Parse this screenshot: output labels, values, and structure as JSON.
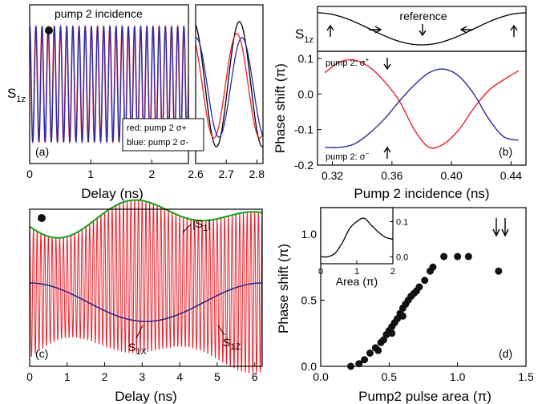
{
  "chart_data": [
    {
      "id": "a",
      "type": "line",
      "panel_label": "(a)",
      "xlabel": "Delay (ns)",
      "ylabel": "S",
      "ylabel_sub": "1z",
      "x_ticks_left": [
        "0",
        "1",
        "2"
      ],
      "x_ticks_right": [
        "2.6",
        "2.7",
        "2.8"
      ],
      "xlim_left": [
        0,
        2.6
      ],
      "xlim_right": [
        2.6,
        2.82
      ],
      "annotation": "pump 2 incidence",
      "legend": [
        "red: pump 2 σ+",
        "blue: pump 2 σ-"
      ],
      "series": [
        {
          "name": "red: pump 2 σ+",
          "color": "#e8202a"
        },
        {
          "name": "blue: pump 2 σ-",
          "color": "#2a2aa8"
        },
        {
          "color": "#000000"
        }
      ]
    },
    {
      "id": "b",
      "type": "line",
      "panel_label": "(b)",
      "xlabel": "Pump 2 incidence (ns)",
      "ylabel": "Phase shift (π)",
      "top_ylabel": "S",
      "top_ylabel_sub": "1z",
      "top_annotation": "reference",
      "xlim": [
        0.31,
        0.45
      ],
      "ylim": [
        -0.2,
        0.12
      ],
      "x_ticks": [
        "0.32",
        "0.36",
        "0.40",
        "0.44"
      ],
      "y_ticks": [
        "-0.2",
        "-0.1",
        "0.0",
        "0.1"
      ],
      "label_top": "pump 2: σ",
      "label_top_sup": "+",
      "label_bottom": "pump 2: σ",
      "label_bottom_sup": "−",
      "series": [
        {
          "color": "#e8202a",
          "x": [
            0.315,
            0.325,
            0.335,
            0.345,
            0.355,
            0.365,
            0.375,
            0.385,
            0.395,
            0.405,
            0.415,
            0.425,
            0.435,
            0.445
          ],
          "y": [
            0.06,
            0.09,
            0.095,
            0.075,
            0.035,
            -0.02,
            -0.1,
            -0.15,
            -0.14,
            -0.1,
            -0.04,
            0.01,
            0.04,
            0.065
          ]
        },
        {
          "color": "#2a2aa8",
          "x": [
            0.315,
            0.325,
            0.335,
            0.345,
            0.355,
            0.365,
            0.375,
            0.385,
            0.395,
            0.405,
            0.415,
            0.425,
            0.435,
            0.445
          ],
          "y": [
            -0.15,
            -0.15,
            -0.14,
            -0.11,
            -0.07,
            -0.02,
            0.025,
            0.06,
            0.07,
            0.05,
            0.0,
            -0.07,
            -0.12,
            -0.13
          ]
        }
      ]
    },
    {
      "id": "c",
      "type": "line",
      "panel_label": "(c)",
      "xlabel": "Delay (ns)",
      "xlim": [
        0,
        6.2
      ],
      "x_ticks": [
        "0",
        "1",
        "2",
        "3",
        "4",
        "5",
        "6"
      ],
      "envelope_label": "|S",
      "envelope_label_sub": "1",
      "envelope_label_end": "|",
      "s1x_label": "S",
      "s1x_sub": "1X",
      "s1z_label": "S",
      "s1z_sub": "1Z",
      "series": [
        {
          "name": "|S1|",
          "color": "#1a9a1a"
        },
        {
          "name": "S1X",
          "color": "#2a2a80"
        },
        {
          "name": "S1Z",
          "color": "#e8202a"
        }
      ]
    },
    {
      "id": "d",
      "type": "scatter",
      "panel_label": "(d)",
      "xlabel": "Pump2 pulse area (π)",
      "ylabel": "Phase shift (π)",
      "xlim": [
        0,
        1.5
      ],
      "ylim": [
        0,
        1.2
      ],
      "x_ticks": [
        "0.0",
        "0.5",
        "1.0",
        "1.5"
      ],
      "y_ticks": [
        "0.0",
        "0.5",
        "1.0"
      ],
      "points": [
        [
          0.22,
          0.0
        ],
        [
          0.28,
          0.02
        ],
        [
          0.32,
          0.05
        ],
        [
          0.36,
          0.1
        ],
        [
          0.4,
          0.14
        ],
        [
          0.44,
          0.18
        ],
        [
          0.46,
          0.2
        ],
        [
          0.48,
          0.24
        ],
        [
          0.5,
          0.27
        ],
        [
          0.52,
          0.3
        ],
        [
          0.54,
          0.33
        ],
        [
          0.56,
          0.36
        ],
        [
          0.58,
          0.4
        ],
        [
          0.6,
          0.44
        ],
        [
          0.62,
          0.47
        ],
        [
          0.64,
          0.5
        ],
        [
          0.66,
          0.53
        ],
        [
          0.68,
          0.55
        ],
        [
          0.7,
          0.57
        ],
        [
          0.72,
          0.6
        ],
        [
          0.76,
          0.65
        ],
        [
          0.8,
          0.72
        ],
        [
          0.82,
          0.75
        ],
        [
          0.9,
          0.83
        ],
        [
          1.0,
          0.83
        ],
        [
          1.08,
          0.83
        ],
        [
          1.3,
          0.72
        ],
        [
          0.42,
          0.12
        ],
        [
          0.52,
          0.25
        ],
        [
          0.6,
          0.38
        ]
      ],
      "point_color": "#111111",
      "inset": {
        "type": "line",
        "xlabel": "Area (π)",
        "xlim": [
          0,
          2
        ],
        "ylim": [
          -0.02,
          0.14
        ],
        "x_ticks": [
          "0",
          "1",
          "2"
        ],
        "y_ticks": [
          "0.0",
          "0.1"
        ],
        "x": [
          0,
          0.2,
          0.4,
          0.6,
          0.8,
          1.0,
          1.2,
          1.4,
          1.6,
          1.8,
          2.0
        ],
        "y": [
          0.0,
          0.0,
          0.01,
          0.04,
          0.08,
          0.1,
          0.11,
          0.09,
          0.07,
          0.055,
          0.05
        ]
      }
    }
  ]
}
